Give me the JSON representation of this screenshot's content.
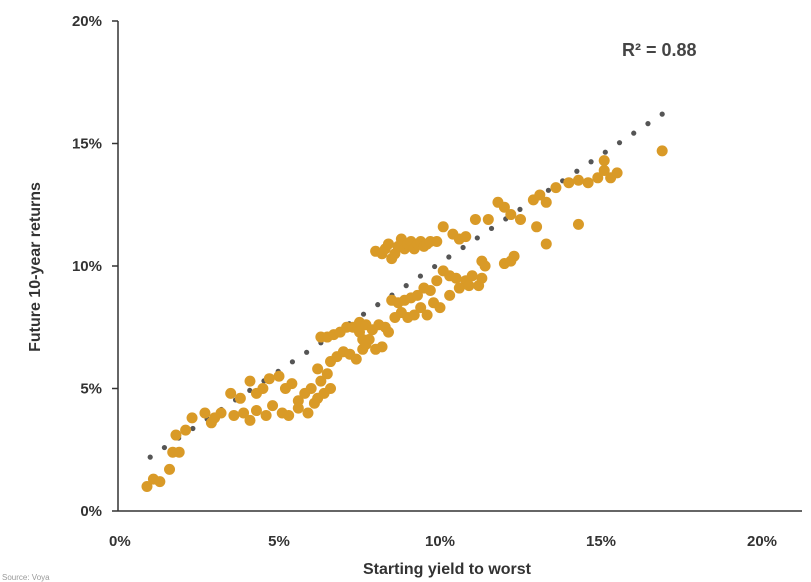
{
  "chart_data": {
    "type": "scatter",
    "title": "",
    "xlabel": "Starting yield to worst",
    "ylabel": "Future 10-year returns",
    "xlim": [
      0,
      20
    ],
    "ylim": [
      0,
      20
    ],
    "x_ticks": [
      0,
      5,
      10,
      15,
      20
    ],
    "y_ticks": [
      0,
      5,
      10,
      15,
      20
    ],
    "x_tick_labels": [
      "0%",
      "5%",
      "10%",
      "15%",
      "20%"
    ],
    "y_tick_labels": [
      "0%",
      "5%",
      "10%",
      "15%",
      "20%"
    ],
    "annotation": "R² = 0.88",
    "source": "Source: Voya",
    "grid": false,
    "legend": "none",
    "colors": {
      "points": "#D99A27",
      "trendline": "#555555",
      "text": "#333333"
    },
    "trendline": {
      "x": [
        1.0,
        16.9
      ],
      "y": [
        2.2,
        16.2
      ]
    },
    "series": [
      {
        "values": [
          {
            "x": 0.9,
            "y": 1.0
          },
          {
            "x": 1.1,
            "y": 1.3
          },
          {
            "x": 1.3,
            "y": 1.2
          },
          {
            "x": 1.6,
            "y": 1.7
          },
          {
            "x": 1.7,
            "y": 2.4
          },
          {
            "x": 1.9,
            "y": 2.4
          },
          {
            "x": 1.8,
            "y": 3.1
          },
          {
            "x": 2.1,
            "y": 3.3
          },
          {
            "x": 2.3,
            "y": 3.8
          },
          {
            "x": 2.7,
            "y": 4.0
          },
          {
            "x": 2.9,
            "y": 3.6
          },
          {
            "x": 3.2,
            "y": 4.0
          },
          {
            "x": 3.0,
            "y": 3.8
          },
          {
            "x": 3.5,
            "y": 4.8
          },
          {
            "x": 3.8,
            "y": 4.6
          },
          {
            "x": 4.1,
            "y": 5.3
          },
          {
            "x": 4.3,
            "y": 4.8
          },
          {
            "x": 4.5,
            "y": 5.0
          },
          {
            "x": 4.7,
            "y": 5.4
          },
          {
            "x": 5.0,
            "y": 5.5
          },
          {
            "x": 5.2,
            "y": 5.0
          },
          {
            "x": 5.4,
            "y": 5.2
          },
          {
            "x": 5.6,
            "y": 4.5
          },
          {
            "x": 5.8,
            "y": 4.8
          },
          {
            "x": 6.0,
            "y": 5.0
          },
          {
            "x": 6.2,
            "y": 5.8
          },
          {
            "x": 6.1,
            "y": 4.4
          },
          {
            "x": 6.3,
            "y": 5.3
          },
          {
            "x": 6.5,
            "y": 5.6
          },
          {
            "x": 3.6,
            "y": 3.9
          },
          {
            "x": 3.9,
            "y": 4.0
          },
          {
            "x": 4.1,
            "y": 3.7
          },
          {
            "x": 4.3,
            "y": 4.1
          },
          {
            "x": 4.6,
            "y": 3.9
          },
          {
            "x": 4.8,
            "y": 4.3
          },
          {
            "x": 5.1,
            "y": 4.0
          },
          {
            "x": 5.3,
            "y": 3.9
          },
          {
            "x": 5.6,
            "y": 4.2
          },
          {
            "x": 5.9,
            "y": 4.0
          },
          {
            "x": 6.2,
            "y": 4.6
          },
          {
            "x": 6.4,
            "y": 4.8
          },
          {
            "x": 6.6,
            "y": 5.0
          },
          {
            "x": 6.3,
            "y": 7.1
          },
          {
            "x": 6.5,
            "y": 7.1
          },
          {
            "x": 6.7,
            "y": 7.2
          },
          {
            "x": 6.9,
            "y": 7.3
          },
          {
            "x": 7.1,
            "y": 7.5
          },
          {
            "x": 7.3,
            "y": 7.5
          },
          {
            "x": 7.5,
            "y": 7.7
          },
          {
            "x": 7.7,
            "y": 7.6
          },
          {
            "x": 7.9,
            "y": 7.4
          },
          {
            "x": 8.1,
            "y": 7.6
          },
          {
            "x": 8.3,
            "y": 7.5
          },
          {
            "x": 6.6,
            "y": 6.1
          },
          {
            "x": 6.8,
            "y": 6.3
          },
          {
            "x": 7.0,
            "y": 6.5
          },
          {
            "x": 7.2,
            "y": 6.4
          },
          {
            "x": 7.4,
            "y": 6.2
          },
          {
            "x": 7.6,
            "y": 6.6
          },
          {
            "x": 7.8,
            "y": 7.0
          },
          {
            "x": 7.5,
            "y": 7.3
          },
          {
            "x": 7.6,
            "y": 7.0
          },
          {
            "x": 7.7,
            "y": 6.8
          },
          {
            "x": 8.0,
            "y": 6.6
          },
          {
            "x": 8.2,
            "y": 6.7
          },
          {
            "x": 8.4,
            "y": 7.3
          },
          {
            "x": 8.5,
            "y": 8.6
          },
          {
            "x": 8.7,
            "y": 8.5
          },
          {
            "x": 8.9,
            "y": 8.6
          },
          {
            "x": 9.1,
            "y": 8.7
          },
          {
            "x": 9.3,
            "y": 8.8
          },
          {
            "x": 9.5,
            "y": 9.1
          },
          {
            "x": 9.7,
            "y": 9.0
          },
          {
            "x": 9.9,
            "y": 9.4
          },
          {
            "x": 10.1,
            "y": 9.8
          },
          {
            "x": 10.3,
            "y": 9.6
          },
          {
            "x": 10.5,
            "y": 9.5
          },
          {
            "x": 10.8,
            "y": 9.4
          },
          {
            "x": 11.0,
            "y": 9.6
          },
          {
            "x": 11.2,
            "y": 9.2
          },
          {
            "x": 8.6,
            "y": 7.9
          },
          {
            "x": 8.8,
            "y": 8.1
          },
          {
            "x": 9.0,
            "y": 7.9
          },
          {
            "x": 9.2,
            "y": 8.0
          },
          {
            "x": 9.4,
            "y": 8.3
          },
          {
            "x": 9.6,
            "y": 8.0
          },
          {
            "x": 9.8,
            "y": 8.5
          },
          {
            "x": 10.0,
            "y": 8.3
          },
          {
            "x": 10.3,
            "y": 8.8
          },
          {
            "x": 10.6,
            "y": 9.1
          },
          {
            "x": 10.9,
            "y": 9.2
          },
          {
            "x": 11.3,
            "y": 9.5
          },
          {
            "x": 8.0,
            "y": 10.6
          },
          {
            "x": 8.2,
            "y": 10.5
          },
          {
            "x": 8.3,
            "y": 10.7
          },
          {
            "x": 8.4,
            "y": 10.9
          },
          {
            "x": 8.5,
            "y": 10.3
          },
          {
            "x": 8.6,
            "y": 10.5
          },
          {
            "x": 8.7,
            "y": 10.8
          },
          {
            "x": 8.8,
            "y": 11.1
          },
          {
            "x": 8.9,
            "y": 10.7
          },
          {
            "x": 9.0,
            "y": 10.9
          },
          {
            "x": 9.1,
            "y": 11.0
          },
          {
            "x": 9.2,
            "y": 10.7
          },
          {
            "x": 9.3,
            "y": 10.9
          },
          {
            "x": 9.4,
            "y": 11.0
          },
          {
            "x": 9.5,
            "y": 10.8
          },
          {
            "x": 9.6,
            "y": 10.9
          },
          {
            "x": 9.7,
            "y": 11.0
          },
          {
            "x": 9.9,
            "y": 11.0
          },
          {
            "x": 10.1,
            "y": 11.6
          },
          {
            "x": 10.4,
            "y": 11.3
          },
          {
            "x": 10.6,
            "y": 11.1
          },
          {
            "x": 10.8,
            "y": 11.2
          },
          {
            "x": 11.1,
            "y": 11.9
          },
          {
            "x": 11.5,
            "y": 11.9
          },
          {
            "x": 11.8,
            "y": 12.6
          },
          {
            "x": 12.0,
            "y": 12.4
          },
          {
            "x": 12.2,
            "y": 12.1
          },
          {
            "x": 12.5,
            "y": 11.9
          },
          {
            "x": 12.0,
            "y": 10.1
          },
          {
            "x": 12.2,
            "y": 10.2
          },
          {
            "x": 12.3,
            "y": 10.4
          },
          {
            "x": 11.3,
            "y": 10.2
          },
          {
            "x": 11.4,
            "y": 10.0
          },
          {
            "x": 12.9,
            "y": 12.7
          },
          {
            "x": 13.1,
            "y": 12.9
          },
          {
            "x": 13.3,
            "y": 12.6
          },
          {
            "x": 13.0,
            "y": 11.6
          },
          {
            "x": 13.3,
            "y": 10.9
          },
          {
            "x": 13.6,
            "y": 13.2
          },
          {
            "x": 14.0,
            "y": 13.4
          },
          {
            "x": 14.3,
            "y": 13.5
          },
          {
            "x": 14.6,
            "y": 13.4
          },
          {
            "x": 14.9,
            "y": 13.6
          },
          {
            "x": 15.1,
            "y": 13.9
          },
          {
            "x": 15.3,
            "y": 13.6
          },
          {
            "x": 15.5,
            "y": 13.8
          },
          {
            "x": 14.3,
            "y": 11.7
          },
          {
            "x": 15.1,
            "y": 14.3
          },
          {
            "x": 16.9,
            "y": 14.7
          }
        ]
      }
    ]
  }
}
